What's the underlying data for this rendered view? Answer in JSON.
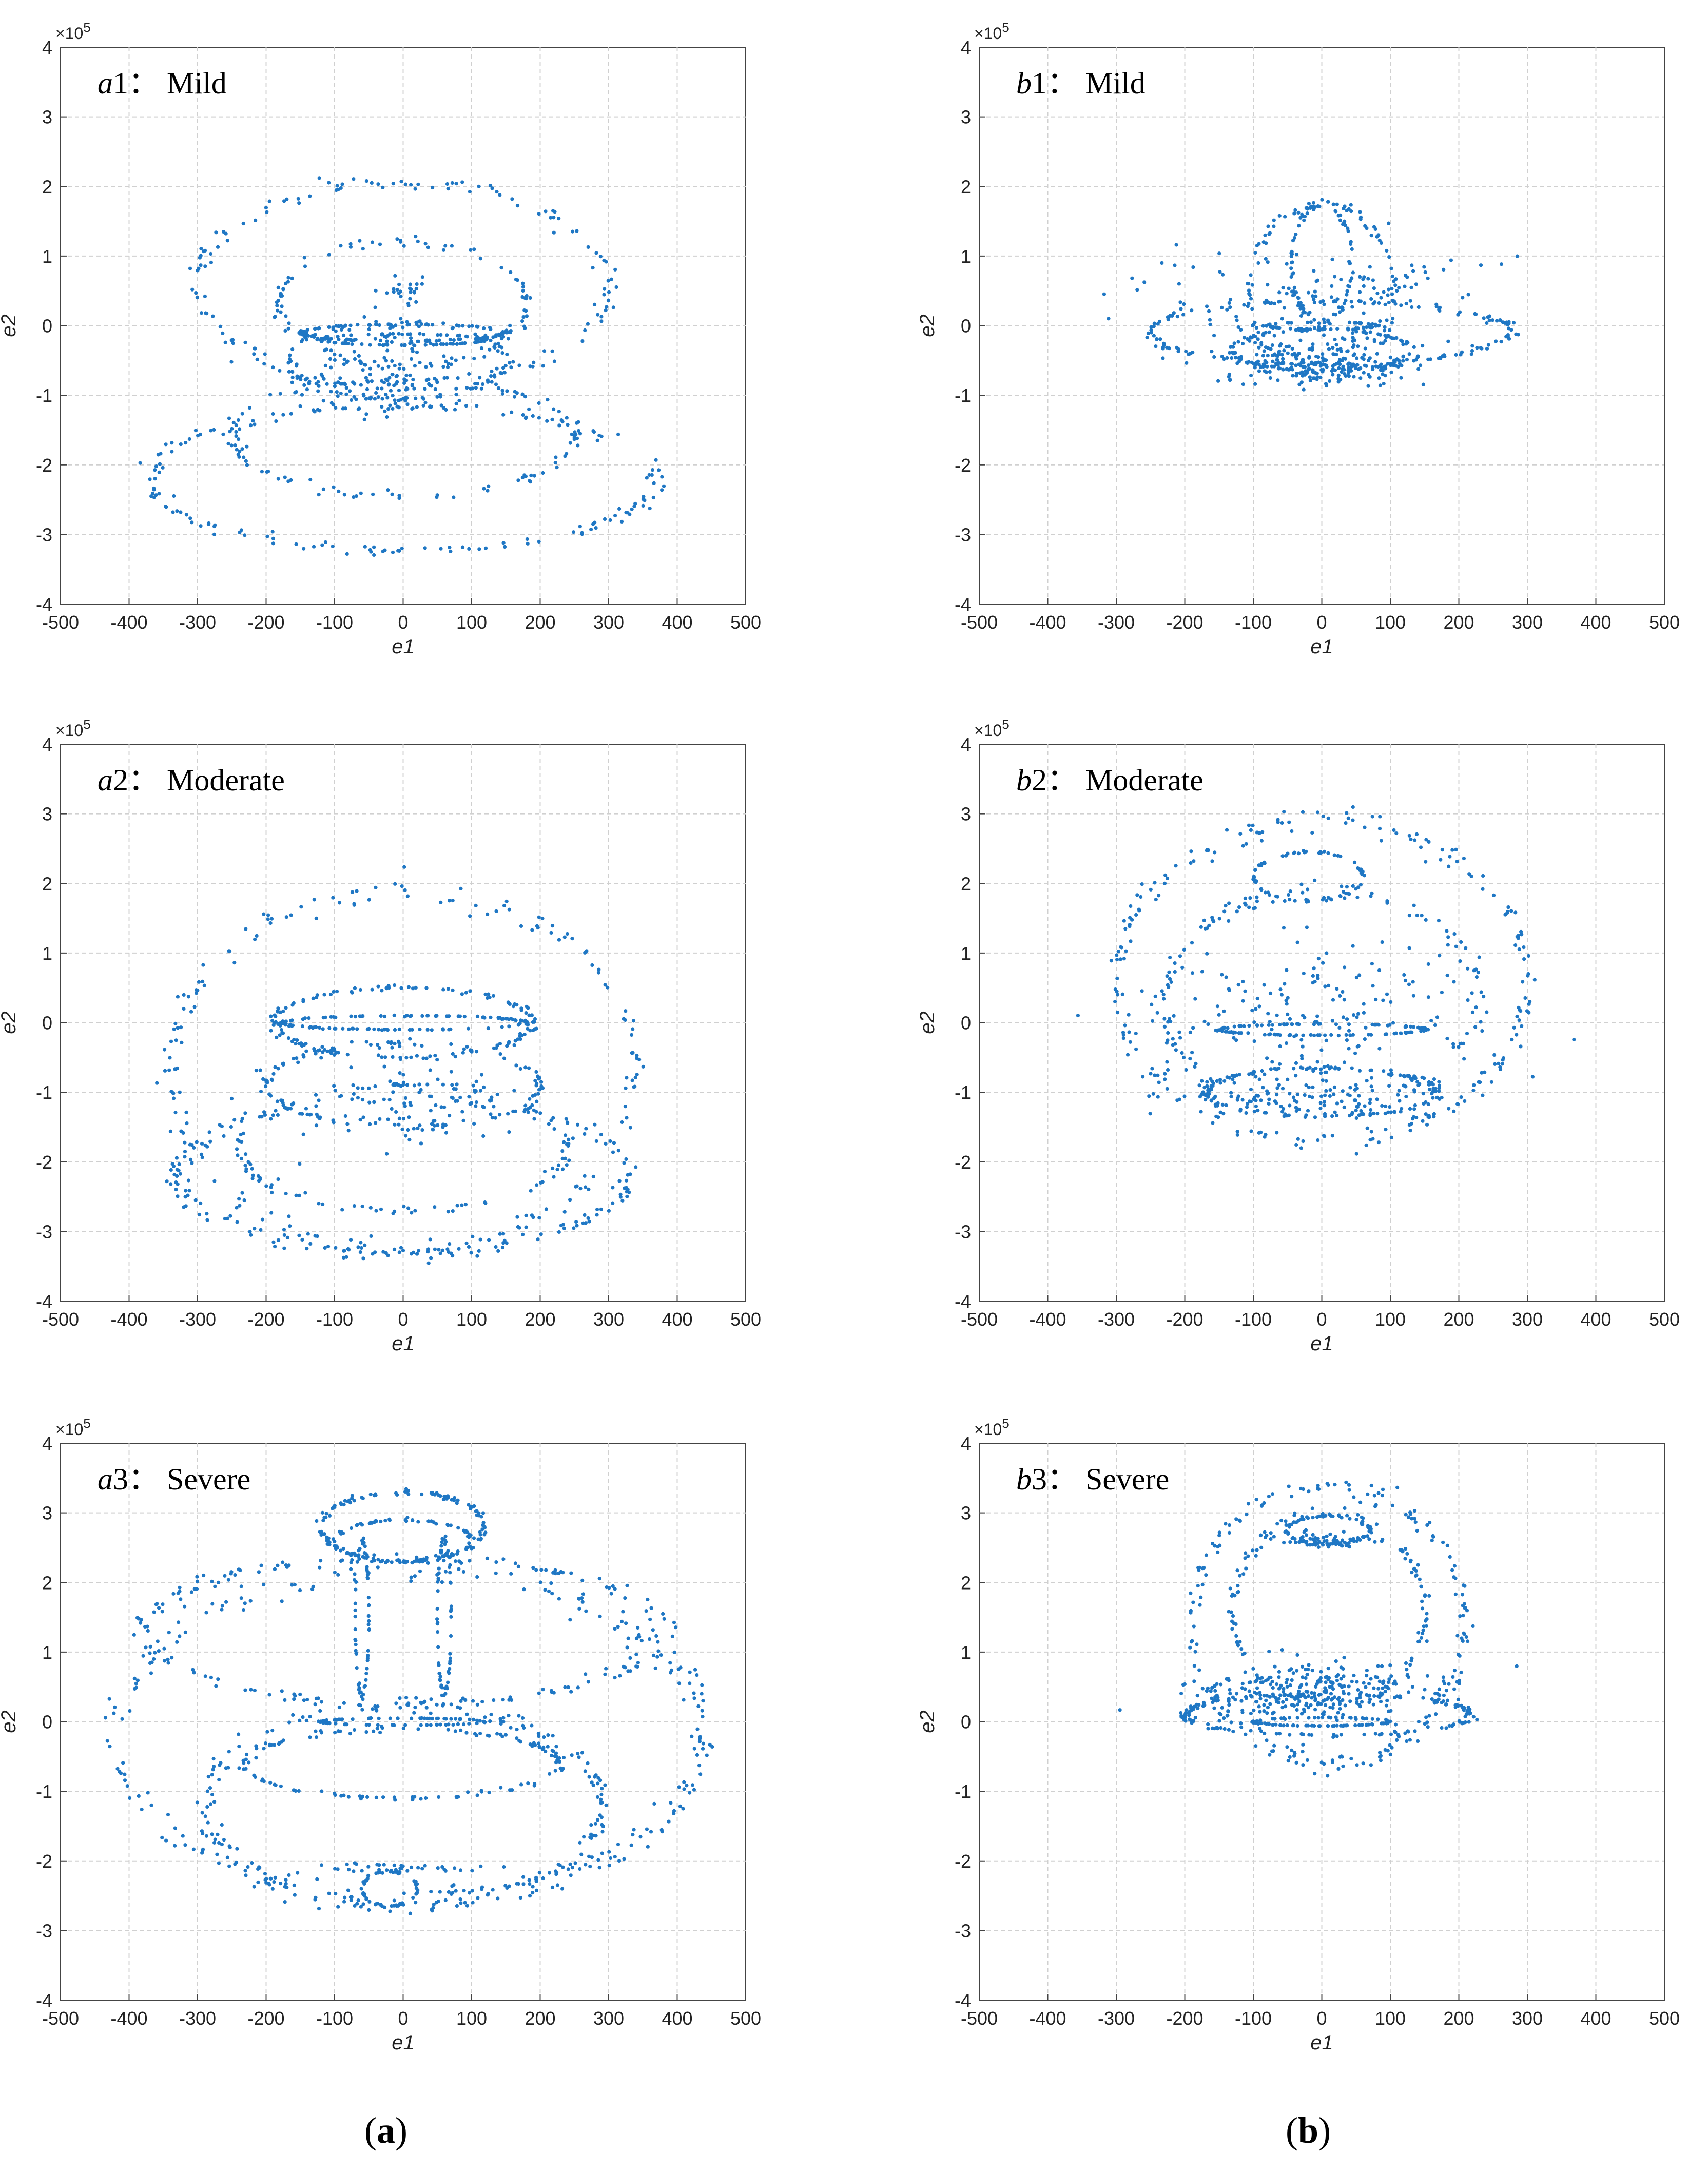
{
  "figure_labels": {
    "a": {
      "open": "(",
      "letter": "a",
      "close": ")"
    },
    "b": {
      "open": "(",
      "letter": "b",
      "close": ")"
    }
  },
  "colors": {
    "points": "#1f77c4",
    "grid": "#d0d0d0",
    "axes": "#444444"
  },
  "chart_data": [
    {
      "type": "scatter",
      "panel": "a1",
      "title": {
        "prefix": "a",
        "number": "1",
        "sep": "：",
        "text": "Mild"
      },
      "xlabel": "e1",
      "ylabel": "e2",
      "y_exponent": "×10^5",
      "xlim": [
        -500,
        500
      ],
      "ylim": [
        -4,
        4
      ],
      "xticks": [
        "-500",
        "-400",
        "-300",
        "-200",
        "-100",
        "0",
        "100",
        "200",
        "300",
        "400",
        "500"
      ],
      "yticks": [
        "-4",
        "-3",
        "-2",
        "-1",
        "0",
        "1",
        "2",
        "3",
        "4"
      ],
      "grid": true,
      "rings": [
        {
          "cx": 0,
          "cy": 0.6,
          "rx": 300,
          "ry": 1.45,
          "n": 150
        },
        {
          "cx": 0,
          "cy": 0.3,
          "rx": 180,
          "ry": 0.9,
          "n": 100
        },
        {
          "cx": 0,
          "cy": -2.2,
          "rx": 370,
          "ry": 1.05,
          "n": 180
        },
        {
          "cx": 0,
          "cy": -1.6,
          "rx": 250,
          "ry": 0.85,
          "n": 120
        },
        {
          "cx": -10,
          "cy": -0.5,
          "rx": 160,
          "ry": 0.55,
          "n": 90
        },
        {
          "cx": 0,
          "cy": -0.1,
          "rx": 150,
          "ry": 0.12,
          "n": 110
        },
        {
          "cx": 0,
          "cy": -0.2,
          "rx": 120,
          "ry": 0.08,
          "n": 90
        }
      ],
      "blobs": [
        {
          "cx": -20,
          "cy": -0.6,
          "sx": 60,
          "sy": 0.35,
          "n": 120
        },
        {
          "cx": 0,
          "cy": 0.5,
          "sx": 20,
          "sy": 0.1,
          "n": 25
        }
      ]
    },
    {
      "type": "scatter",
      "panel": "b1",
      "title": {
        "prefix": "b",
        "number": "1",
        "sep": "：",
        "text": "Mild"
      },
      "xlabel": "e1",
      "ylabel": "e2",
      "y_exponent": "×10^5",
      "xlim": [
        -500,
        500
      ],
      "ylim": [
        -4,
        4
      ],
      "xticks": [
        "-500",
        "-400",
        "-300",
        "-200",
        "-100",
        "0",
        "100",
        "200",
        "300",
        "400",
        "500"
      ],
      "yticks": [
        "-4",
        "-3",
        "-2",
        "-1",
        "0",
        "1",
        "2",
        "3",
        "4"
      ],
      "grid": true,
      "rings": [
        {
          "cx": 10,
          "cy": -0.1,
          "rx": 265,
          "ry": 0.45,
          "n": 150
        },
        {
          "cx": 0,
          "cy": 0.9,
          "rx": 45,
          "ry": 0.85,
          "n": 80
        },
        {
          "cx": 0,
          "cy": 0.5,
          "rx": 105,
          "ry": 1.25,
          "n": 110
        },
        {
          "cx": 0,
          "cy": -0.35,
          "rx": 130,
          "ry": 0.3,
          "n": 120
        },
        {
          "cx": 0,
          "cy": 0.0,
          "rx": 80,
          "ry": 0.05,
          "n": 50
        }
      ],
      "blobs": [
        {
          "cx": 0,
          "cy": -0.5,
          "sx": 80,
          "sy": 0.18,
          "n": 220
        },
        {
          "cx": 0,
          "cy": 0.5,
          "sx": 120,
          "sy": 0.35,
          "n": 120
        }
      ]
    },
    {
      "type": "scatter",
      "panel": "a2",
      "title": {
        "prefix": "a",
        "number": "2",
        "sep": "：",
        "text": "Moderate"
      },
      "xlabel": "e1",
      "ylabel": "e2",
      "y_exponent": "×10^5",
      "xlim": [
        -500,
        500
      ],
      "ylim": [
        -4,
        4
      ],
      "xticks": [
        "-500",
        "-400",
        "-300",
        "-200",
        "-100",
        "0",
        "100",
        "200",
        "300",
        "400",
        "500"
      ],
      "yticks": [
        "-4",
        "-3",
        "-2",
        "-1",
        "0",
        "1",
        "2",
        "3",
        "4"
      ],
      "grid": true,
      "rings": [
        {
          "cx": 0,
          "cy": -0.7,
          "rx": 340,
          "ry": 2.6,
          "n": 200
        },
        {
          "cx": 0,
          "cy": -2.2,
          "rx": 330,
          "ry": 1.1,
          "n": 170
        },
        {
          "cx": 0,
          "cy": -1.8,
          "rx": 240,
          "ry": 0.9,
          "n": 120
        },
        {
          "cx": 0,
          "cy": -0.9,
          "rx": 200,
          "ry": 0.6,
          "n": 110
        },
        {
          "cx": 0,
          "cy": 0.0,
          "rx": 190,
          "ry": 0.5,
          "n": 140
        },
        {
          "cx": 0,
          "cy": 0.0,
          "rx": 180,
          "ry": 0.1,
          "n": 120
        }
      ],
      "blobs": [
        {
          "cx": 0,
          "cy": -1.2,
          "sx": 90,
          "sy": 0.3,
          "n": 80
        }
      ]
    },
    {
      "type": "scatter",
      "panel": "b2",
      "title": {
        "prefix": "b",
        "number": "2",
        "sep": "：",
        "text": "Moderate"
      },
      "xlabel": "e1",
      "ylabel": "e2",
      "y_exponent": "×10^5",
      "xlim": [
        -500,
        500
      ],
      "ylim": [
        -4,
        4
      ],
      "xticks": [
        "-500",
        "-400",
        "-300",
        "-200",
        "-100",
        "0",
        "100",
        "200",
        "300",
        "400",
        "500"
      ],
      "yticks": [
        "-4",
        "-3",
        "-2",
        "-1",
        "0",
        "1",
        "2",
        "3",
        "4"
      ],
      "grid": true,
      "rings": [
        {
          "cx": 0,
          "cy": 0.6,
          "rx": 300,
          "ry": 2.3,
          "n": 220
        },
        {
          "cx": 0,
          "cy": 0.3,
          "rx": 230,
          "ry": 1.6,
          "n": 150
        },
        {
          "cx": -20,
          "cy": 2.1,
          "rx": 80,
          "ry": 0.35,
          "n": 70
        },
        {
          "cx": 0,
          "cy": -1.0,
          "rx": 170,
          "ry": 0.35,
          "n": 150
        },
        {
          "cx": 0,
          "cy": -0.1,
          "rx": 150,
          "ry": 0.08,
          "n": 110
        }
      ],
      "blobs": [
        {
          "cx": 0,
          "cy": 0.2,
          "sx": 120,
          "sy": 0.5,
          "n": 160
        },
        {
          "cx": 0,
          "cy": -1.0,
          "sx": 90,
          "sy": 0.15,
          "n": 100
        }
      ]
    },
    {
      "type": "scatter",
      "panel": "a3",
      "title": {
        "prefix": "a",
        "number": "3",
        "sep": "：",
        "text": "Severe"
      },
      "xlabel": "e1",
      "ylabel": "e2",
      "y_exponent": "×10^5",
      "xlim": [
        -500,
        500
      ],
      "ylim": [
        -4,
        4
      ],
      "xticks": [
        "-500",
        "-400",
        "-300",
        "-200",
        "-100",
        "0",
        "100",
        "200",
        "300",
        "400",
        "500"
      ],
      "yticks": [
        "-4",
        "-3",
        "-2",
        "-1",
        "0",
        "1",
        "2",
        "3",
        "4"
      ],
      "grid": true,
      "rings": [
        {
          "cx": 10,
          "cy": -0.2,
          "rx": 430,
          "ry": 2.35,
          "n": 260
        },
        {
          "cx": 0,
          "cy": 1.3,
          "rx": 380,
          "ry": 1.05,
          "n": 180
        },
        {
          "cx": 0,
          "cy": -1.2,
          "rx": 290,
          "ry": 1.45,
          "n": 190
        },
        {
          "cx": 0,
          "cy": -0.6,
          "rx": 230,
          "ry": 0.5,
          "n": 130
        },
        {
          "cx": 0,
          "cy": 2.8,
          "rx": 120,
          "ry": 0.5,
          "n": 130
        },
        {
          "cx": 0,
          "cy": 2.6,
          "rx": 100,
          "ry": 0.3,
          "n": 90
        },
        {
          "cx": -60,
          "cy": 1.5,
          "rx": 10,
          "ry": 1.1,
          "n": 60
        },
        {
          "cx": 60,
          "cy": 1.5,
          "rx": 10,
          "ry": 1.1,
          "n": 60
        },
        {
          "cx": 0,
          "cy": 0.0,
          "rx": 120,
          "ry": 0.05,
          "n": 80
        },
        {
          "cx": -20,
          "cy": -2.4,
          "rx": 40,
          "ry": 0.25,
          "n": 50
        }
      ],
      "blobs": [
        {
          "cx": 0,
          "cy": -2.1,
          "sx": 70,
          "sy": 0.04,
          "n": 40
        }
      ]
    },
    {
      "type": "scatter",
      "panel": "b3",
      "title": {
        "prefix": "b",
        "number": "3",
        "sep": "：",
        "text": "Severe"
      },
      "xlabel": "e1",
      "ylabel": "e2",
      "y_exponent": "×10^5",
      "xlim": [
        -500,
        500
      ],
      "ylim": [
        -4,
        4
      ],
      "xticks": [
        "-500",
        "-400",
        "-300",
        "-200",
        "-100",
        "0",
        "100",
        "200",
        "300",
        "400",
        "500"
      ],
      "yticks": [
        "-4",
        "-3",
        "-2",
        "-1",
        "0",
        "1",
        "2",
        "3",
        "4"
      ],
      "grid": true,
      "rings": [
        {
          "cx": 10,
          "cy": 1.4,
          "rx": 200,
          "ry": 2.0,
          "n": 200
        },
        {
          "cx": 10,
          "cy": 1.6,
          "rx": 140,
          "ry": 1.4,
          "n": 140
        },
        {
          "cx": 10,
          "cy": 2.75,
          "rx": 60,
          "ry": 0.2,
          "n": 60
        },
        {
          "cx": 10,
          "cy": 0.1,
          "rx": 210,
          "ry": 0.3,
          "n": 150
        },
        {
          "cx": 0,
          "cy": 0.0,
          "rx": 100,
          "ry": 0.06,
          "n": 80
        }
      ],
      "blobs": [
        {
          "cx": 0,
          "cy": 0.45,
          "sx": 90,
          "sy": 0.18,
          "n": 260
        },
        {
          "cx": 10,
          "cy": 2.6,
          "sx": 30,
          "sy": 0.06,
          "n": 60
        }
      ]
    }
  ]
}
